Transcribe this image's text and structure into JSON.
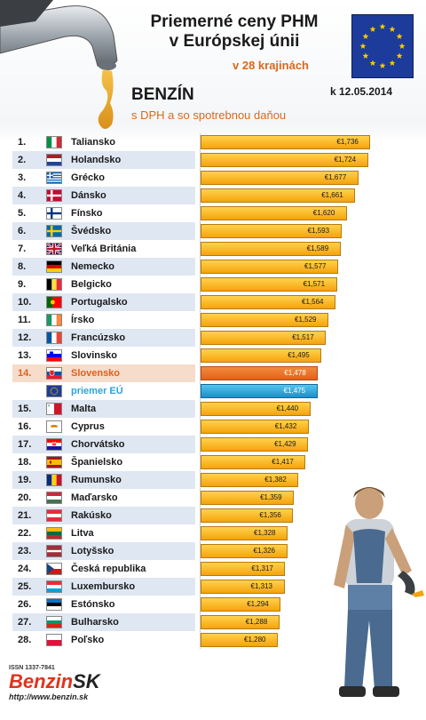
{
  "header": {
    "title_line1": "Priemerné ceny PHM",
    "title_line2": "v Európskej únii",
    "subtitle": "v 28 krajinách",
    "date": "k 12.05.2014",
    "fuel": "BENZÍN",
    "fuel_note": "s DPH a so spotrebnou daňou"
  },
  "footer": {
    "issn": "ISSN 1337-7841",
    "brand_part1": "Benzin",
    "brand_part2": "SK",
    "url": "http://www.benzin.sk"
  },
  "colors": {
    "bar": "#f5a30d",
    "slovakia": "#e2621a",
    "eu_average": "#1f8ec6",
    "title_accent": "#d9681c"
  },
  "chart_data": {
    "type": "bar",
    "orientation": "horizontal",
    "unit": "€",
    "xlim": [
      0.9,
      1.8
    ],
    "rows": [
      {
        "rank": "1.",
        "country": "Taliansko",
        "flag": "it",
        "value": 1.736,
        "label": "€1,736"
      },
      {
        "rank": "2.",
        "country": "Holandsko",
        "flag": "nl",
        "value": 1.724,
        "label": "€1,724"
      },
      {
        "rank": "3.",
        "country": "Grécko",
        "flag": "gr",
        "value": 1.677,
        "label": "€1,677"
      },
      {
        "rank": "4.",
        "country": "Dánsko",
        "flag": "dk",
        "value": 1.661,
        "label": "€1,661"
      },
      {
        "rank": "5.",
        "country": "Fínsko",
        "flag": "fi",
        "value": 1.62,
        "label": "€1,620"
      },
      {
        "rank": "6.",
        "country": "Švédsko",
        "flag": "se",
        "value": 1.593,
        "label": "€1,593"
      },
      {
        "rank": "7.",
        "country": "Veľká Británia",
        "flag": "gb",
        "value": 1.589,
        "label": "€1,589"
      },
      {
        "rank": "8.",
        "country": "Nemecko",
        "flag": "de",
        "value": 1.577,
        "label": "€1,577"
      },
      {
        "rank": "9.",
        "country": "Belgicko",
        "flag": "be",
        "value": 1.571,
        "label": "€1,571"
      },
      {
        "rank": "10.",
        "country": "Portugalsko",
        "flag": "pt",
        "value": 1.564,
        "label": "€1,564"
      },
      {
        "rank": "11.",
        "country": "Írsko",
        "flag": "ie",
        "value": 1.529,
        "label": "€1,529"
      },
      {
        "rank": "12.",
        "country": "Francúzsko",
        "flag": "fr",
        "value": 1.517,
        "label": "€1,517"
      },
      {
        "rank": "13.",
        "country": "Slovinsko",
        "flag": "si",
        "value": 1.495,
        "label": "€1,495"
      },
      {
        "rank": "14.",
        "country": "Slovensko",
        "flag": "sk",
        "value": 1.478,
        "label": "€1,478",
        "highlight": "sk"
      },
      {
        "rank": "",
        "country": "priemer EÚ",
        "flag": "eu",
        "value": 1.475,
        "label": "€1,475",
        "highlight": "eu"
      },
      {
        "rank": "15.",
        "country": "Malta",
        "flag": "mt",
        "value": 1.44,
        "label": "€1,440"
      },
      {
        "rank": "16.",
        "country": "Cyprus",
        "flag": "cy",
        "value": 1.432,
        "label": "€1,432"
      },
      {
        "rank": "17.",
        "country": "Chorvátsko",
        "flag": "hr",
        "value": 1.429,
        "label": "€1,429"
      },
      {
        "rank": "18.",
        "country": "Španielsko",
        "flag": "es",
        "value": 1.417,
        "label": "€1,417"
      },
      {
        "rank": "19.",
        "country": "Rumunsko",
        "flag": "ro",
        "value": 1.382,
        "label": "€1,382"
      },
      {
        "rank": "20.",
        "country": "Maďarsko",
        "flag": "hu",
        "value": 1.359,
        "label": "€1,359"
      },
      {
        "rank": "21.",
        "country": "Rakúsko",
        "flag": "at",
        "value": 1.356,
        "label": "€1,356"
      },
      {
        "rank": "22.",
        "country": "Litva",
        "flag": "lt",
        "value": 1.328,
        "label": "€1,328"
      },
      {
        "rank": "23.",
        "country": "Lotyšsko",
        "flag": "lv",
        "value": 1.326,
        "label": "€1,326"
      },
      {
        "rank": "24.",
        "country": "Česká republika",
        "flag": "cz",
        "value": 1.317,
        "label": "€1,317"
      },
      {
        "rank": "25.",
        "country": "Luxembursko",
        "flag": "lu",
        "value": 1.313,
        "label": "€1,313"
      },
      {
        "rank": "26.",
        "country": "Estónsko",
        "flag": "ee",
        "value": 1.294,
        "label": "€1,294"
      },
      {
        "rank": "27.",
        "country": "Bulharsko",
        "flag": "bg",
        "value": 1.288,
        "label": "€1,288"
      },
      {
        "rank": "28.",
        "country": "Poľsko",
        "flag": "pl",
        "value": 1.28,
        "label": "€1,280"
      }
    ]
  }
}
